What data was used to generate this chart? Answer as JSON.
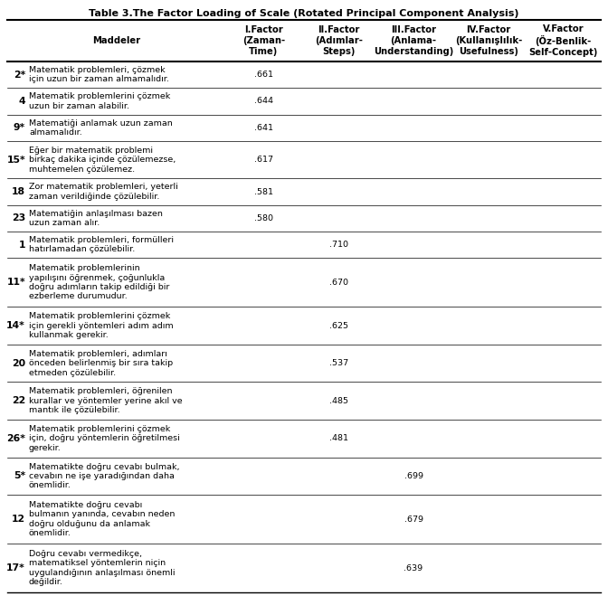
{
  "title": "Table 3.The Factor Loading of Scale (Rotated Principal Component Analysis)",
  "col_headers": [
    "Maddeler",
    "I.Factor\n(Zaman-\nTime)",
    "II.Factor\n(Adımlar-\nSteps)",
    "III.Factor\n(Anlama-\nUnderstanding)",
    "IV.Factor\n(Kullanışlılık-\nUsefulness)",
    "V.Factor\n(Öz-Benlik-\nSelf-Concept)"
  ],
  "rows": [
    {
      "id": "2*",
      "text": "Matematik problemleri, çözmek\niçin uzun bir zaman almamalıdır.",
      "f1": ".661",
      "f2": "",
      "f3": "",
      "f4": "",
      "f5": ""
    },
    {
      "id": "4",
      "text": "Matematik problemlerini çözmek\nuzun bir zaman alabilir.",
      "f1": ".644",
      "f2": "",
      "f3": "",
      "f4": "",
      "f5": ""
    },
    {
      "id": "9*",
      "text": "Matematiği anlamak uzun zaman\nalmamalıdır.",
      "f1": ".641",
      "f2": "",
      "f3": "",
      "f4": "",
      "f5": ""
    },
    {
      "id": "15*",
      "text": "Eğer bir matematik problemi\nbirkaç dakika içinde çözülemezse,\nmuhtemelen çözülemez.",
      "f1": ".617",
      "f2": "",
      "f3": "",
      "f4": "",
      "f5": ""
    },
    {
      "id": "18",
      "text": "Zor matematik problemleri, yeterli\nzaman verildiğinde çözülebilir.",
      "f1": ".581",
      "f2": "",
      "f3": "",
      "f4": "",
      "f5": ""
    },
    {
      "id": "23",
      "text": "Matematiğin anlaşılması bazen\nuzun zaman alır.",
      "f1": ".580",
      "f2": "",
      "f3": "",
      "f4": "",
      "f5": ""
    },
    {
      "id": "1",
      "text": "Matematik problemleri, formülleri\nhatırlamadan çözülebilir.",
      "f1": "",
      "f2": ".710",
      "f3": "",
      "f4": "",
      "f5": ""
    },
    {
      "id": "11*",
      "text": "Matematik problemlerinin\nyapılışını öğrenmek, çoğunlukla\ndoğru adımların takip edildiği bir\nezberleme durumudur.",
      "f1": "",
      "f2": ".670",
      "f3": "",
      "f4": "",
      "f5": ""
    },
    {
      "id": "14*",
      "text": "Matematik problemlerini çözmek\niçin gerekli yöntemleri adım adım\nkullanmak gerekir.",
      "f1": "",
      "f2": ".625",
      "f3": "",
      "f4": "",
      "f5": ""
    },
    {
      "id": "20",
      "text": "Matematik problemleri, adımları\nönceden belirlenmiş bir sıra takip\netmeden çözülebilir.",
      "f1": "",
      "f2": ".537",
      "f3": "",
      "f4": "",
      "f5": ""
    },
    {
      "id": "22",
      "text": "Matematik problemleri, öğrenilen\nkurallar ve yöntemler yerine akıl ve\nmantık ile çözülebilir.",
      "f1": "",
      "f2": ".485",
      "f3": "",
      "f4": "",
      "f5": ""
    },
    {
      "id": "26*",
      "text": "Matematik problemlerini çözmek\niçin, doğru yöntemlerin öğretilmesi\ngerekir.",
      "f1": "",
      "f2": ".481",
      "f3": "",
      "f4": "",
      "f5": ""
    },
    {
      "id": "5*",
      "text": "Matematikte doğru cevabı bulmak,\ncevabın ne işe yaradığından daha\nönemlidir.",
      "f1": "",
      "f2": "",
      "f3": ".699",
      "f4": "",
      "f5": ""
    },
    {
      "id": "12",
      "text": "Matematikte doğru cevabı\nbulmanın yanında, cevabın neden\ndoğru olduğunu da anlamak\nönemlidir.",
      "f1": "",
      "f2": "",
      "f3": ".679",
      "f4": "",
      "f5": ""
    },
    {
      "id": "17*",
      "text": "Doğru cevabı vermedikçe,\nmatematiksel yöntemlerin niçin\nuygulandığının anlaşılması önemli\ndeğildir.",
      "f1": "",
      "f2": "",
      "f3": ".639",
      "f4": "",
      "f5": ""
    }
  ],
  "bg_color": "#ffffff",
  "text_color": "#000000",
  "title_fontsize": 8.0,
  "header_fontsize": 7.2,
  "body_fontsize": 6.8,
  "id_fontsize": 7.8
}
